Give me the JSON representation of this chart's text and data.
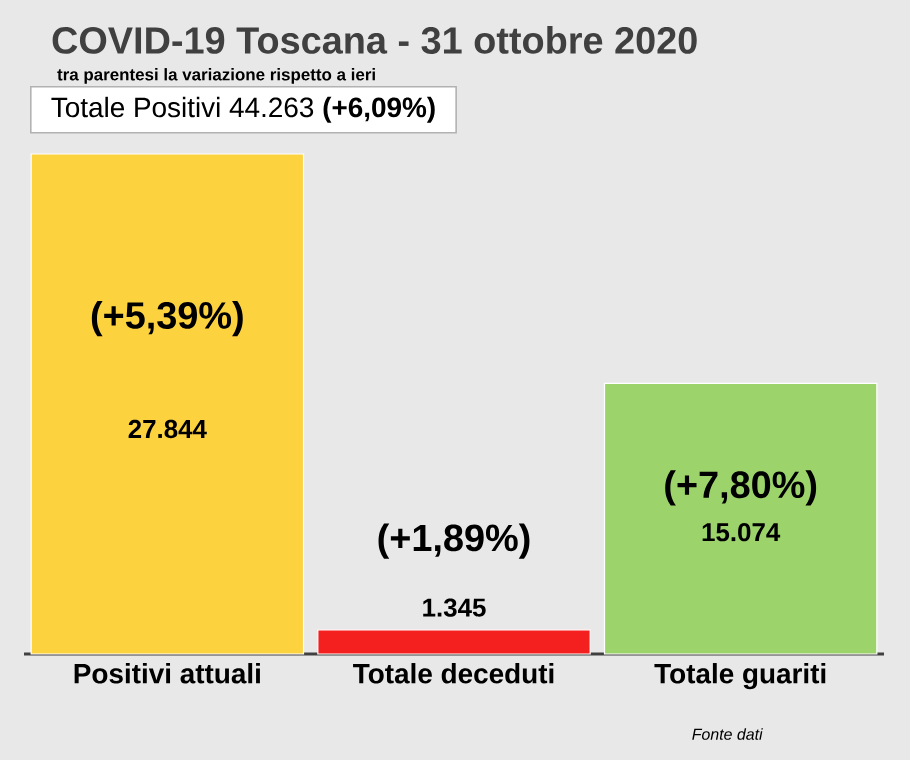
{
  "chart_data": {
    "type": "bar",
    "title": "COVID-19  Toscana - 31 ottobre 2020",
    "subtitle": "tra parentesi la variazione rispetto a ieri",
    "categories": [
      "Positivi attuali",
      "Totale deceduti",
      "Totale guariti"
    ],
    "values": [
      27844,
      1345,
      15074
    ],
    "colors": [
      "#fcd23f",
      "#f42020",
      "#9cd36a"
    ],
    "value_labels": [
      "27.844",
      "1.345",
      "15.074"
    ],
    "annotations": [
      "Totale Positivi    44.263 **(+6,09%)**",
      "(+5,39%)",
      "(+1,89%)",
      "(+7,80%)",
      "*Fonte dati*"
    ],
    "tick_labels": "x"
  }
}
